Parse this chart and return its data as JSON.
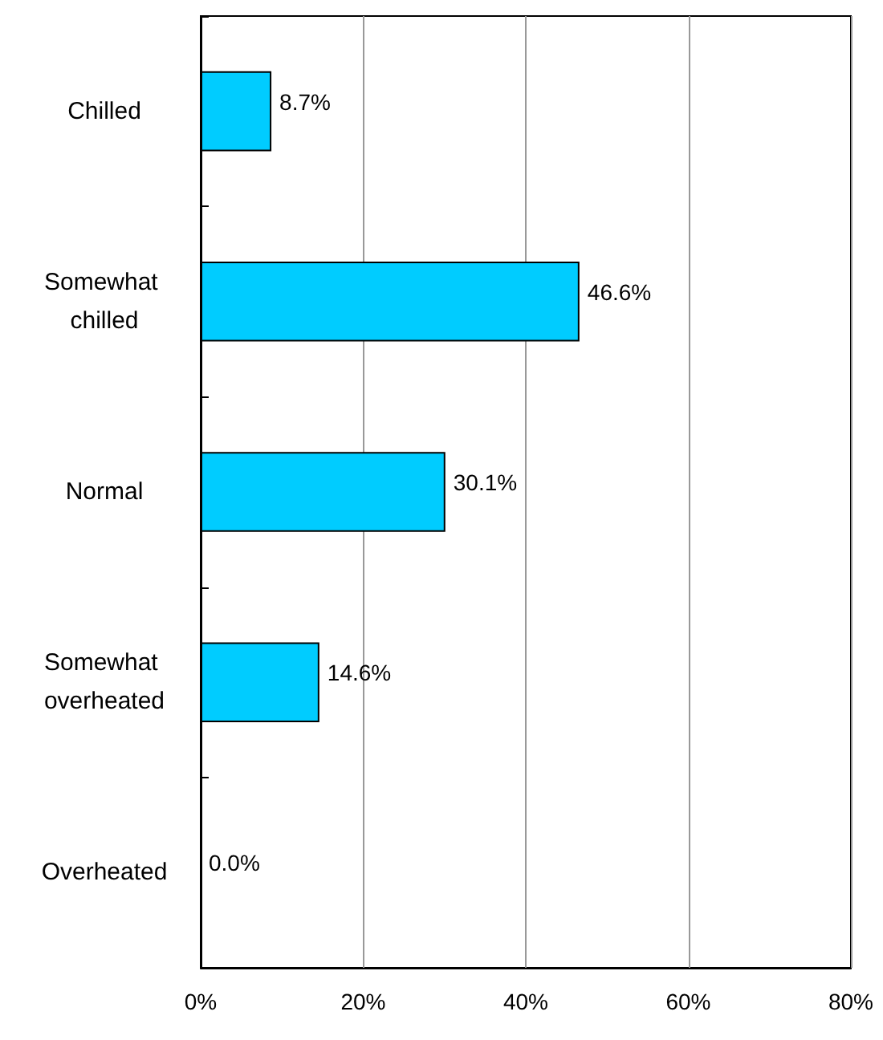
{
  "chart_data": {
    "type": "bar",
    "orientation": "horizontal",
    "categories": [
      "Chilled",
      "Somewhat chilled",
      "Normal",
      "Somewhat overheated",
      "Overheated"
    ],
    "values": [
      8.7,
      46.6,
      30.1,
      14.6,
      0.0
    ],
    "color": "#00ccff",
    "value_labels": [
      "8.7%",
      "46.6%",
      "30.1%",
      "14.6%",
      "0.0%"
    ],
    "xlim": [
      0,
      80
    ],
    "xticks": [
      {
        "value": 0,
        "label": "0%"
      },
      {
        "value": 20,
        "label": "20%"
      },
      {
        "value": 40,
        "label": "40%"
      },
      {
        "value": 60,
        "label": "60%"
      },
      {
        "value": 80,
        "label": "80%"
      }
    ],
    "grid": "x"
  }
}
